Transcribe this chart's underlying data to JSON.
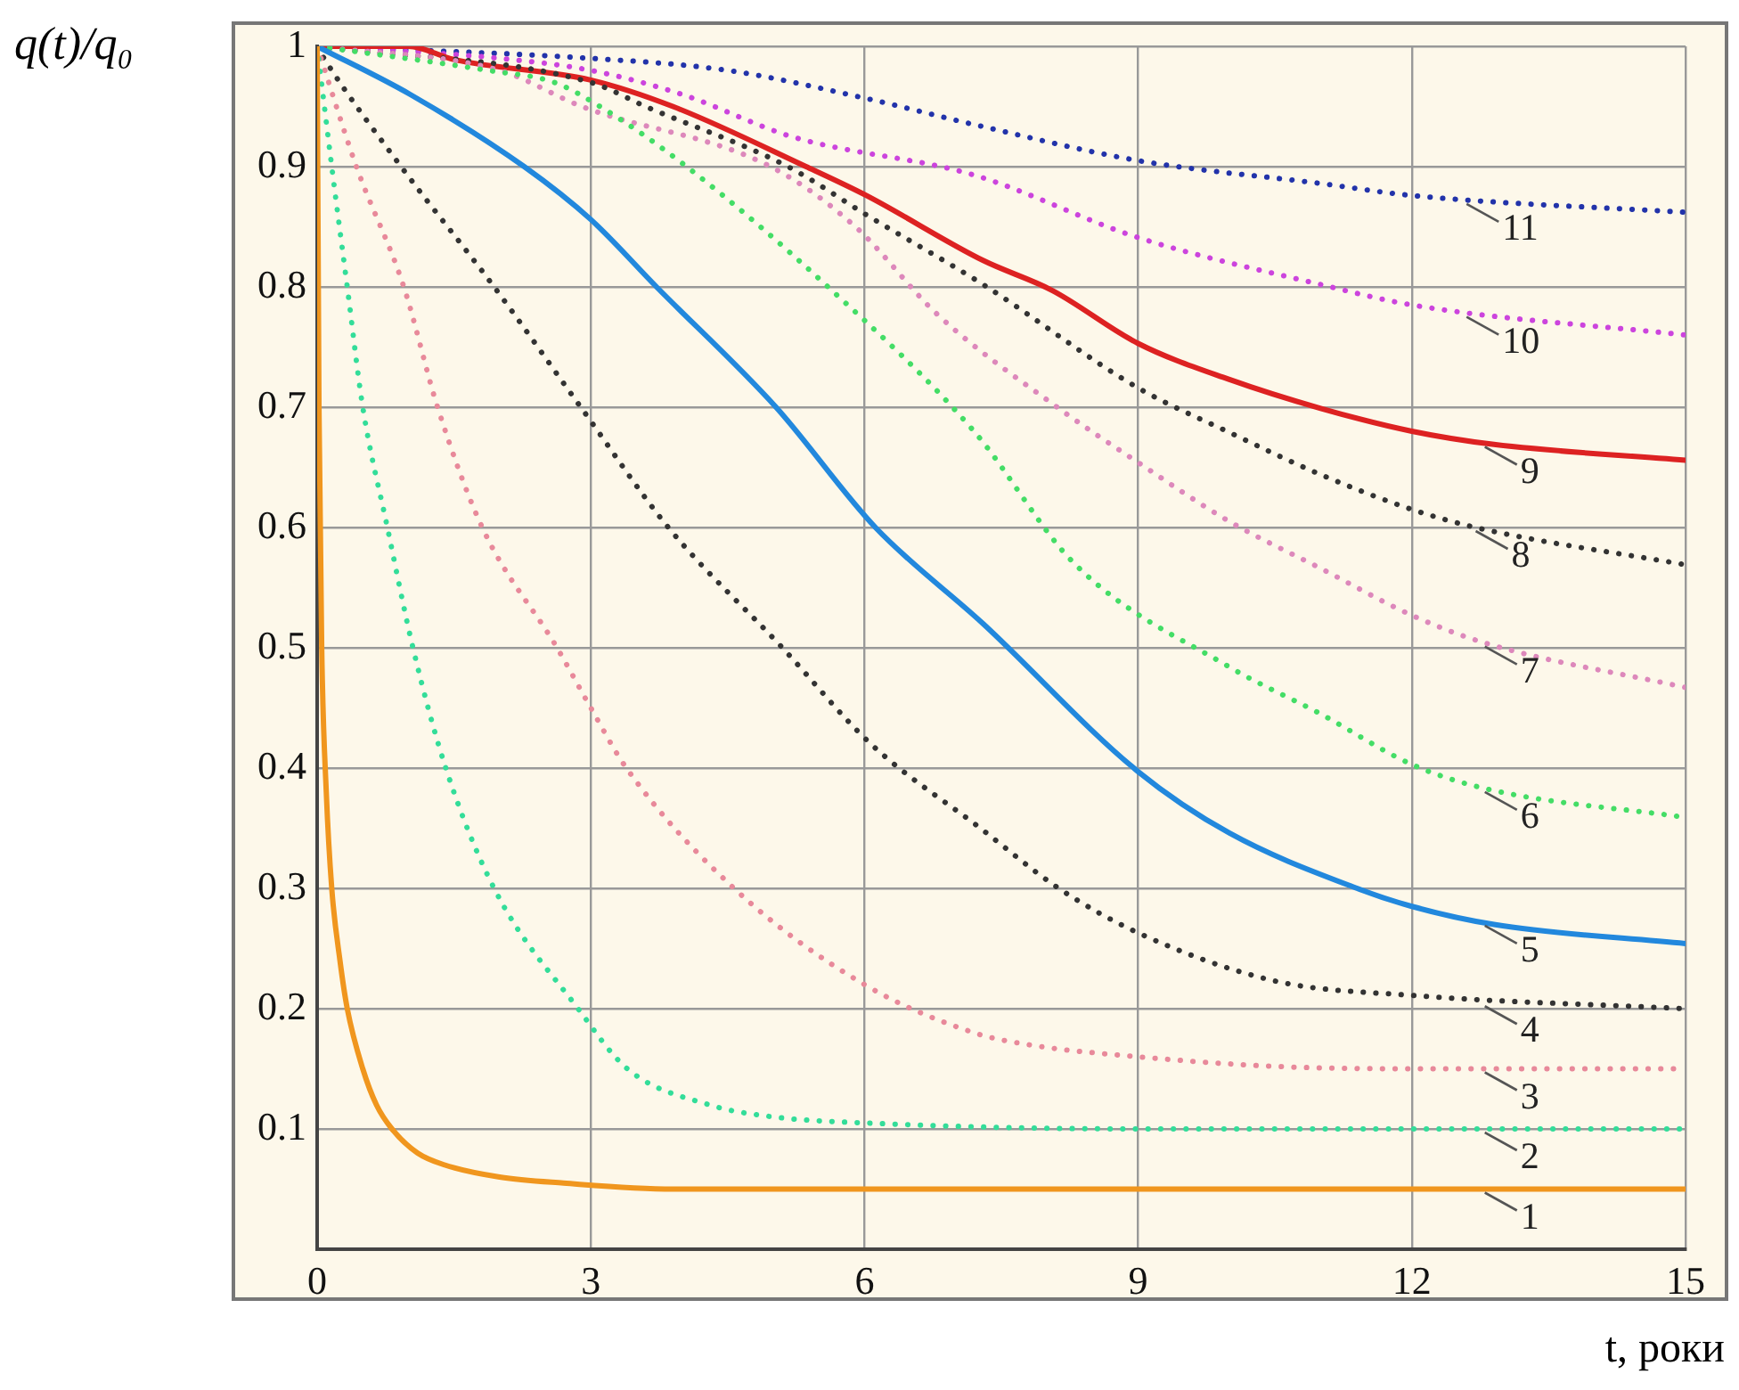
{
  "chart_data": {
    "type": "line",
    "xlabel": "t, роки",
    "ylabel": "q(t)/q₀",
    "xlim": [
      0,
      15
    ],
    "xticks": [
      0,
      3,
      6,
      9,
      12,
      15
    ],
    "ylim": [
      0,
      1
    ],
    "yticks": [
      {
        "value": 0,
        "label": null
      },
      0.1,
      0.2,
      0.3,
      0.4,
      0.5,
      0.6,
      0.7,
      0.8,
      0.9,
      1
    ],
    "grid": true,
    "legend": false,
    "marker": "none",
    "series": [
      {
        "color": "#f0961e",
        "line_style": "solid",
        "x": [
          0,
          0.02,
          0.05,
          0.1,
          0.16,
          0.25,
          0.33,
          0.5,
          0.65,
          0.82,
          1.1,
          1.4,
          2,
          2.7,
          3.9,
          6,
          9,
          12,
          15
        ],
        "values": [
          1,
          0.7,
          0.5,
          0.38,
          0.3,
          0.24,
          0.2,
          0.15,
          0.12,
          0.1,
          0.08,
          0.07,
          0.06,
          0.055,
          0.05,
          0.05,
          0.05,
          0.05,
          0.05
        ]
      },
      {
        "color": "#33dd99",
        "line_style": "dotted",
        "x": [
          0,
          0.16,
          0.33,
          0.5,
          0.77,
          1.05,
          1.41,
          1.94,
          2.86,
          3.4,
          4.3,
          5,
          6,
          9,
          12,
          15
        ],
        "values": [
          1,
          0.9,
          0.8,
          0.7,
          0.6,
          0.5,
          0.4,
          0.3,
          0.2,
          0.15,
          0.12,
          0.11,
          0.105,
          0.1,
          0.1,
          0.1
        ]
      },
      {
        "color": "#e8899a",
        "line_style": "dotted",
        "x": [
          0,
          0.43,
          0.95,
          1.32,
          1.81,
          2.63,
          3,
          3.39,
          4.57,
          6,
          7.2,
          7.8,
          9,
          10.5,
          12,
          15
        ],
        "values": [
          1,
          0.9,
          0.8,
          0.7,
          0.6,
          0.5,
          0.45,
          0.4,
          0.3,
          0.22,
          0.18,
          0.17,
          0.16,
          0.152,
          0.15,
          0.15
        ]
      },
      {
        "color": "#333333",
        "line_style": "dotted",
        "x": [
          0,
          0.1,
          0.92,
          1.94,
          2.89,
          3.85,
          5.1,
          6.07,
          7.27,
          8.13,
          9,
          10.5,
          12,
          15
        ],
        "values": [
          1,
          0.987,
          0.9,
          0.8,
          0.7,
          0.6,
          0.5,
          0.42,
          0.35,
          0.3,
          0.263,
          0.223,
          0.211,
          0.2
        ]
      },
      {
        "color": "#2288dd",
        "line_style": "solid",
        "x": [
          0,
          1.02,
          2.27,
          3,
          3.72,
          5.03,
          6.12,
          7.3,
          9,
          10,
          11.4,
          12,
          12.9,
          15
        ],
        "values": [
          1,
          0.96,
          0.9,
          0.856,
          0.8,
          0.7,
          0.6,
          0.52,
          0.397,
          0.346,
          0.3,
          0.285,
          0.27,
          0.254
        ]
      },
      {
        "color": "#44dd66",
        "line_style": "dotted",
        "x": [
          0,
          1.87,
          2.6,
          3.1,
          4.05,
          5.6,
          7.2,
          8.3,
          10,
          11,
          12,
          12.8,
          15
        ],
        "values": [
          1,
          0.98,
          0.97,
          0.95,
          0.9,
          0.8,
          0.68,
          0.57,
          0.484,
          0.445,
          0.403,
          0.383,
          0.359
        ]
      },
      {
        "color": "#dd88bb",
        "line_style": "dotted",
        "x": [
          0,
          2,
          2.9,
          4.97,
          5.9,
          6.8,
          8.13,
          9,
          10,
          11,
          12,
          12.8,
          15
        ],
        "values": [
          1,
          0.98,
          0.95,
          0.9,
          0.85,
          0.777,
          0.699,
          0.654,
          0.605,
          0.566,
          0.527,
          0.504,
          0.467
        ]
      },
      {
        "color": "#333333",
        "line_style": "dotted",
        "x": [
          0,
          3,
          3.6,
          5.16,
          6.04,
          7.3,
          9,
          10,
          11,
          12,
          12.7,
          15
        ],
        "values": [
          1,
          0.97,
          0.95,
          0.9,
          0.859,
          0.802,
          0.716,
          0.679,
          0.644,
          0.615,
          0.6,
          0.569
        ]
      },
      {
        "color": "#dd2222",
        "line_style": "solid",
        "x": [
          0,
          1,
          1.5,
          3,
          3.9,
          5.36,
          6.02,
          7.3,
          8.06,
          9,
          10,
          11,
          12,
          12.9,
          15
        ],
        "values": [
          1,
          1,
          0.989,
          0.972,
          0.95,
          0.9,
          0.876,
          0.822,
          0.797,
          0.753,
          0.723,
          0.699,
          0.68,
          0.669,
          0.656
        ]
      },
      {
        "color": "#cc44dd",
        "line_style": "dotted",
        "x": [
          0,
          2,
          3,
          4,
          5.2,
          7.2,
          9,
          11,
          12,
          15
        ],
        "values": [
          1,
          0.99,
          0.98,
          0.96,
          0.925,
          0.893,
          0.841,
          0.802,
          0.785,
          0.76
        ]
      },
      {
        "color": "#2233aa",
        "line_style": "dotted",
        "x": [
          0,
          3,
          4.5,
          6,
          7.2,
          9,
          11,
          12,
          15
        ],
        "values": [
          1,
          0.99,
          0.98,
          0.957,
          0.935,
          0.905,
          0.886,
          0.876,
          0.862
        ]
      }
    ],
    "annotations": [
      {
        "text": "1",
        "x": 12.8,
        "y": 0.05
      },
      {
        "text": "2",
        "x": 12.8,
        "y": 0.1
      },
      {
        "text": "3",
        "x": 12.8,
        "y": 0.15
      },
      {
        "text": "4",
        "x": 12.8,
        "y": 0.205
      },
      {
        "text": "5",
        "x": 12.8,
        "y": 0.272
      },
      {
        "text": "6",
        "x": 12.8,
        "y": 0.383
      },
      {
        "text": "7",
        "x": 12.8,
        "y": 0.504
      },
      {
        "text": "8",
        "x": 12.7,
        "y": 0.6
      },
      {
        "text": "9",
        "x": 12.8,
        "y": 0.67
      },
      {
        "text": "10",
        "x": 12.6,
        "y": 0.778
      },
      {
        "text": "11",
        "x": 12.6,
        "y": 0.872
      }
    ]
  }
}
